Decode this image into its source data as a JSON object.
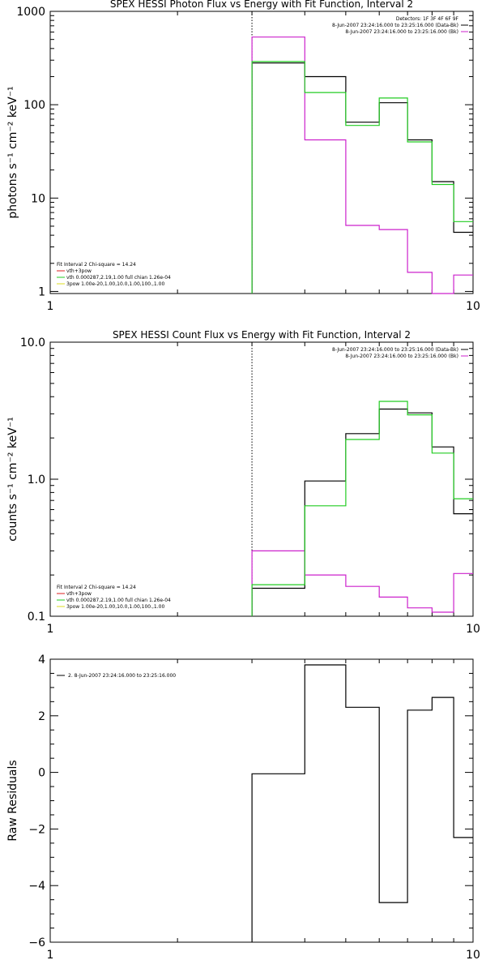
{
  "colors": {
    "data": "#000000",
    "background": "#cc22cc",
    "fit": "#22cc22",
    "fit_alt": "#dd2222",
    "spow": "#dddd22"
  },
  "chart_data": [
    {
      "type": "line",
      "title": "SPEX HESSI Photon Flux vs Energy with Fit Function, Interval 2",
      "ylabel": "photons s⁻¹ cm⁻² keV⁻¹",
      "xscale": "log",
      "yscale": "log",
      "xlim": [
        1,
        10
      ],
      "ylim": [
        0.95,
        1000
      ],
      "xticks": [
        "1",
        "10"
      ],
      "yticks": [
        "1",
        "10",
        "100",
        "1000"
      ],
      "energy_edges": [
        3,
        4,
        5,
        6,
        7,
        8,
        9,
        10
      ],
      "marker_x": 3,
      "legend_top_right": [
        "Detectors: 1F 3F 4F 6F 9F",
        "8-Jun-2007 23:24:16.000 to 23:25:16.000 (Data-Bk)",
        "8-Jun-2007 23:24:16.000 to 23:25:16.000 (Bk)"
      ],
      "legend_bottom_left": [
        "Fit Interval 2   Chi-square = 14.24",
        "vth+3pow",
        "vth 0.000287,2.19,1.00   full chian 1.26e-04",
        "3pow 1.00e-20,1.00,10.0,1.00,100.,1.00"
      ],
      "series": [
        {
          "name": "Data-Bk",
          "color": "#000000",
          "values": [
            280,
            200,
            65,
            105,
            42,
            15,
            4.3
          ]
        },
        {
          "name": "Bk",
          "color": "#cc22cc",
          "values": [
            530,
            42,
            5.1,
            4.6,
            1.6,
            0.95,
            1.5
          ]
        },
        {
          "name": "vth+3pow",
          "color": "#22cc22",
          "values": [
            290,
            135,
            60,
            118,
            40,
            14,
            5.6
          ]
        }
      ]
    },
    {
      "type": "line",
      "title": "SPEX HESSI Count Flux vs Energy with Fit Function, Interval 2",
      "ylabel": "counts s⁻¹ cm⁻² keV⁻¹",
      "xscale": "log",
      "yscale": "log",
      "xlim": [
        1,
        10
      ],
      "ylim": [
        0.1,
        10
      ],
      "xticks": [
        "1",
        "10"
      ],
      "yticks": [
        "0.1",
        "1.0",
        "10.0"
      ],
      "energy_edges": [
        3,
        4,
        5,
        6,
        7,
        8,
        9,
        10
      ],
      "marker_x": 3,
      "legend_top_right": [
        "8-Jun-2007 23:24:16.000 to 23:25:16.000 (Data-Bk)",
        "8-Jun-2007 23:24:16.000 to 23:25:16.000 (Bk)"
      ],
      "legend_bottom_left": [
        "Fit Interval 2   Chi-square = 14.24",
        "vth+3pow",
        "vth 0.000287,2.19,1.00   full chian 1.26e-04",
        "3pow 1.00e-20,1.00,10.0,1.00,100.,1.00"
      ],
      "series": [
        {
          "name": "Data-Bk",
          "color": "#000000",
          "values": [
            0.16,
            0.97,
            2.15,
            3.25,
            3.05,
            1.72,
            0.56
          ]
        },
        {
          "name": "Bk",
          "color": "#cc22cc",
          "values": [
            0.3,
            0.2,
            0.165,
            0.138,
            0.115,
            0.107,
            0.205
          ]
        },
        {
          "name": "vth+3pow",
          "color": "#22cc22",
          "values": [
            0.17,
            0.64,
            1.95,
            3.7,
            2.95,
            1.55,
            0.72
          ]
        }
      ]
    },
    {
      "type": "line",
      "title": "",
      "ylabel": "Raw Residuals",
      "xscale": "log",
      "yscale": "linear",
      "xlim": [
        1,
        10
      ],
      "ylim": [
        -6,
        4
      ],
      "xticks": [
        "1",
        "10"
      ],
      "yticks": [
        "−6",
        "−4",
        "−2",
        "0",
        "2",
        "4"
      ],
      "energy_edges": [
        3,
        4,
        5,
        6,
        7,
        8,
        9,
        10
      ],
      "legend_top_left": [
        "2.  8-Jun-2007 23:24:16.000 to 23:25:16.000"
      ],
      "series": [
        {
          "name": "2.  8-Jun-2007 23:24:16.000 to 23:25:16.000",
          "color": "#000000",
          "values": [
            -0.05,
            3.8,
            2.3,
            -4.6,
            2.2,
            2.65,
            -2.3
          ]
        }
      ]
    }
  ]
}
